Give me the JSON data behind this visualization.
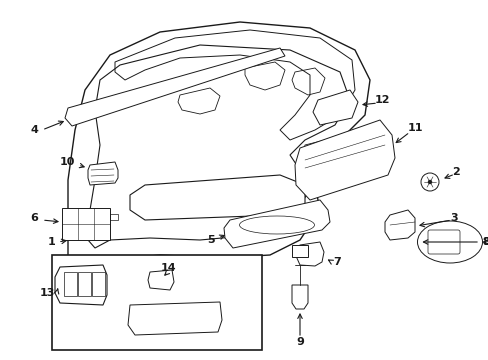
{
  "background_color": "#ffffff",
  "line_color": "#1a1a1a",
  "fig_width": 4.89,
  "fig_height": 3.6,
  "dpi": 100,
  "label_fontsize": 8.0,
  "label_color": "#1a1a1a"
}
